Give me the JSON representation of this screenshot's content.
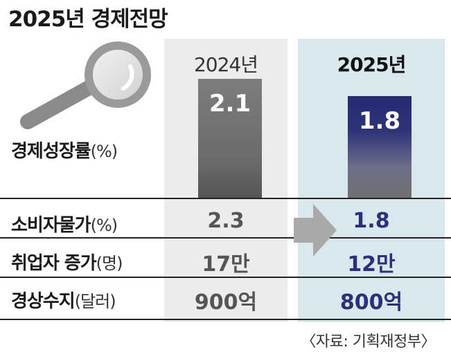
{
  "title": "2025년 경제전망",
  "icons": {
    "magnifier": "magnifying-glass-icon",
    "arrow": "right-arrow-icon"
  },
  "colors": {
    "accent_2025": "#2c2f7c",
    "panel_2025": "#d8e8ec",
    "panel_2024": "#ececed"
  },
  "columns": [
    "2024년",
    "2025년"
  ],
  "rows": [
    {
      "label": "경제성장률",
      "unit": "(%)",
      "values": [
        "2.1",
        "1.8"
      ]
    },
    {
      "label": "소비자물가",
      "unit": "(%)",
      "values": [
        "2.3",
        "1.8"
      ]
    },
    {
      "label": "취업자 증가",
      "unit": "(명)",
      "values": [
        "17만",
        "12만"
      ]
    },
    {
      "label": "경상수지",
      "unit": "(달러)",
      "values": [
        "900억",
        "800억"
      ]
    }
  ],
  "source": "〈자료: 기획재정부〉",
  "chart_data": {
    "type": "bar",
    "title": "2025년 경제전망",
    "categories": [
      "2024년",
      "2025년"
    ],
    "values": [
      2.1,
      1.8
    ],
    "ylabel": "경제성장률(%)",
    "ylim": [
      0,
      2.1
    ]
  }
}
